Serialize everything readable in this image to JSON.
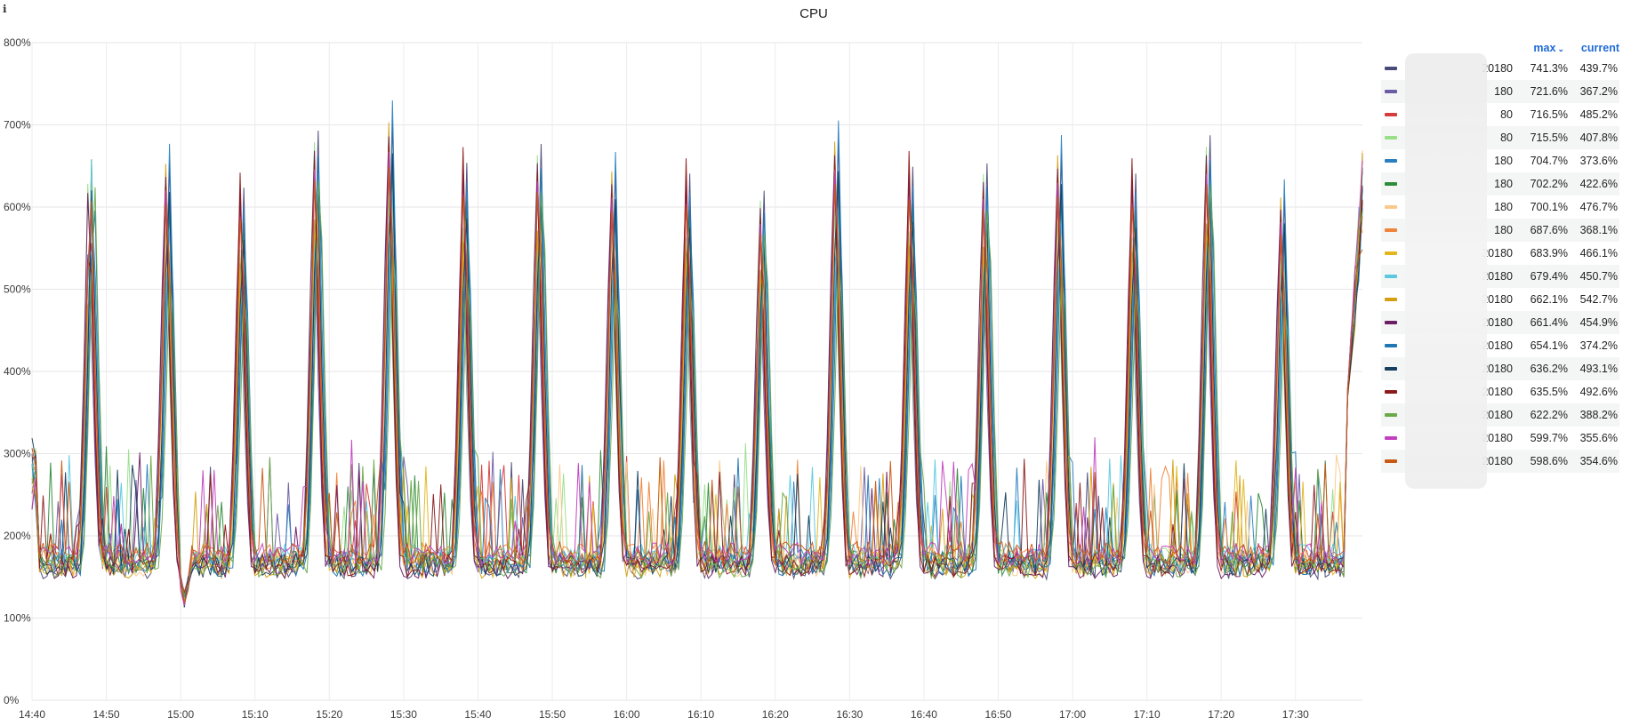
{
  "panel": {
    "info_icon": "info-icon",
    "title": "CPU"
  },
  "legend": {
    "headers": {
      "max": "max",
      "current": "current",
      "sort_icon": "chevron-down-icon"
    },
    "rows": [
      {
        "name": "20180",
        "max": "741.3%",
        "current": "439.7%",
        "color": "#4a4a7a"
      },
      {
        "name": "180",
        "max": "721.6%",
        "current": "367.2%",
        "color": "#6b5ca5"
      },
      {
        "name": "80",
        "max": "716.5%",
        "current": "485.2%",
        "color": "#d63c3c"
      },
      {
        "name": "80",
        "max": "715.5%",
        "current": "407.8%",
        "color": "#98df8a"
      },
      {
        "name": "180",
        "max": "704.7%",
        "current": "373.6%",
        "color": "#2a7fc1"
      },
      {
        "name": "180",
        "max": "702.2%",
        "current": "422.6%",
        "color": "#2e8b3a"
      },
      {
        "name": "180",
        "max": "700.1%",
        "current": "476.7%",
        "color": "#f9c98b"
      },
      {
        "name": "180",
        "max": "687.6%",
        "current": "368.1%",
        "color": "#f0843a"
      },
      {
        "name": "20180",
        "max": "683.9%",
        "current": "466.1%",
        "color": "#e3b61e"
      },
      {
        "name": "20180",
        "max": "679.4%",
        "current": "450.7%",
        "color": "#5cc8e0"
      },
      {
        "name": "20180",
        "max": "662.1%",
        "current": "542.7%",
        "color": "#d4a012"
      },
      {
        "name": "20180",
        "max": "661.4%",
        "current": "454.9%",
        "color": "#6e1e63"
      },
      {
        "name": "20180",
        "max": "654.1%",
        "current": "374.2%",
        "color": "#1f77b4"
      },
      {
        "name": "20180",
        "max": "636.2%",
        "current": "493.1%",
        "color": "#173f5f"
      },
      {
        "name": "20180",
        "max": "635.5%",
        "current": "492.6%",
        "color": "#8b1a1a"
      },
      {
        "name": "20180",
        "max": "622.2%",
        "current": "388.2%",
        "color": "#6aaa48"
      },
      {
        "name": "20180",
        "max": "599.7%",
        "current": "355.6%",
        "color": "#c33fbf"
      },
      {
        "name": "20180",
        "max": "598.6%",
        "current": "354.6%",
        "color": "#c85a14"
      }
    ]
  },
  "chart_data": {
    "type": "line",
    "title": "CPU",
    "ylim": [
      0,
      800
    ],
    "yticks": [
      "0%",
      "100%",
      "200%",
      "300%",
      "400%",
      "500%",
      "600%",
      "700%",
      "800%"
    ],
    "xlim_minutes": [
      0,
      179
    ],
    "x_ticks": [
      "14:40",
      "14:50",
      "15:00",
      "15:10",
      "15:20",
      "15:30",
      "15:40",
      "15:50",
      "16:00",
      "16:10",
      "16:20",
      "16:30",
      "16:40",
      "16:50",
      "17:00",
      "17:10",
      "17:20",
      "17:30"
    ],
    "x_tick_minutes": [
      0,
      10,
      20,
      30,
      40,
      50,
      60,
      70,
      80,
      90,
      100,
      110,
      120,
      130,
      140,
      150,
      160,
      170
    ],
    "grid": true,
    "legend_placement": "right",
    "spike_times_minutes": [
      8,
      18.3,
      28.3,
      38.3,
      48.3,
      58.3,
      68.3,
      78.3,
      88.3,
      98.3,
      108.3,
      118.3,
      128.3,
      138.3,
      148.3,
      158.3,
      168.3
    ],
    "spike_peaks_percent": [
      682,
      687,
      655,
      722,
      741,
      687,
      705,
      677,
      673,
      645,
      716,
      682,
      680,
      698,
      673,
      716,
      643
    ],
    "dip_minute": 20.5,
    "dip_percent": 88,
    "baseline_percent": [
      155,
      285
    ],
    "end_minute": 179,
    "end_percent": 676
  }
}
